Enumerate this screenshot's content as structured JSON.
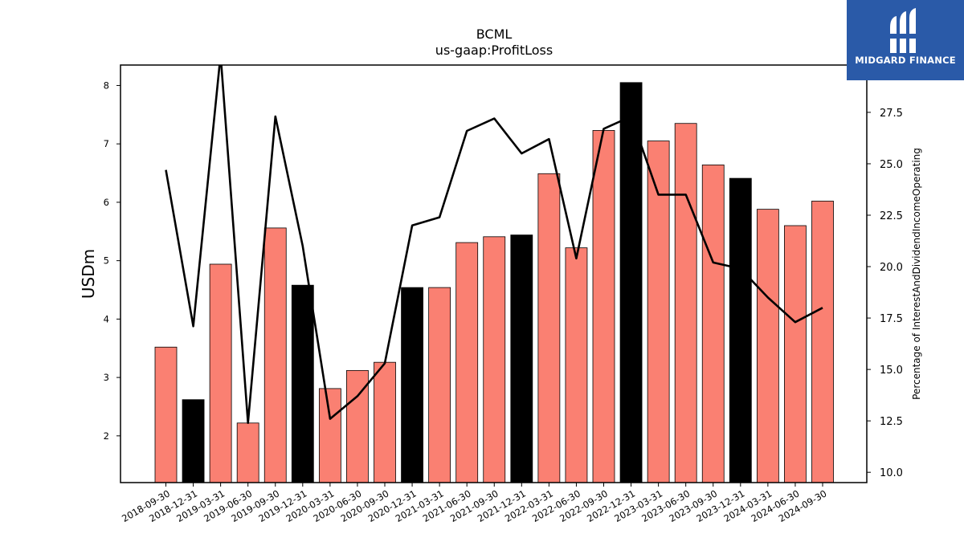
{
  "chart_data": {
    "type": "bar",
    "title": "BCML",
    "subtitle": "us-gaap:ProfitLoss",
    "ylabel": "USDm",
    "y2label": "Percentage of InterestAndDividendIncomeOperating",
    "ylim": [
      1.2,
      8.35
    ],
    "y2lim": [
      9.5,
      29.8
    ],
    "yticks": [
      2,
      3,
      4,
      5,
      6,
      7,
      8
    ],
    "y2ticks": [
      "10.0",
      "12.5",
      "15.0",
      "17.5",
      "20.0",
      "22.5",
      "25.0",
      "27.5"
    ],
    "categories": [
      "2018-09-30",
      "2018-12-31",
      "2019-03-31",
      "2019-06-30",
      "2019-09-30",
      "2019-12-31",
      "2020-03-31",
      "2020-06-30",
      "2020-09-30",
      "2020-12-31",
      "2021-03-31",
      "2021-06-30",
      "2021-09-30",
      "2021-12-31",
      "2022-03-31",
      "2022-06-30",
      "2022-09-30",
      "2022-12-31",
      "2023-03-31",
      "2023-06-30",
      "2023-09-30",
      "2023-12-31",
      "2024-03-31",
      "2024-06-30",
      "2024-09-30"
    ],
    "series": [
      {
        "kind": "bar",
        "values": [
          3.52,
          2.62,
          4.94,
          2.22,
          5.56,
          4.58,
          2.81,
          3.12,
          3.26,
          4.54,
          4.54,
          5.31,
          5.41,
          5.44,
          6.49,
          5.22,
          7.23,
          8.05,
          7.05,
          7.35,
          6.64,
          6.41,
          5.88,
          5.6,
          6.02
        ],
        "colors": [
          "#fa8072",
          "#000000",
          "#fa8072",
          "#fa8072",
          "#fa8072",
          "#000000",
          "#fa8072",
          "#fa8072",
          "#fa8072",
          "#000000",
          "#fa8072",
          "#fa8072",
          "#fa8072",
          "#000000",
          "#fa8072",
          "#fa8072",
          "#fa8072",
          "#000000",
          "#fa8072",
          "#fa8072",
          "#fa8072",
          "#000000",
          "#fa8072",
          "#fa8072",
          "#fa8072"
        ]
      },
      {
        "kind": "line",
        "axis": "right",
        "color": "#000000",
        "values": [
          24.7,
          17.1,
          30.3,
          12.4,
          27.3,
          21.0,
          12.6,
          13.7,
          15.3,
          22.0,
          22.4,
          26.6,
          27.2,
          25.5,
          26.2,
          20.4,
          26.7,
          27.3,
          23.5,
          23.5,
          20.2,
          19.9,
          18.5,
          17.3,
          18.0
        ]
      }
    ]
  },
  "logo": {
    "text": "MIDGARD FINANCE",
    "color": "#2a5aa8"
  }
}
